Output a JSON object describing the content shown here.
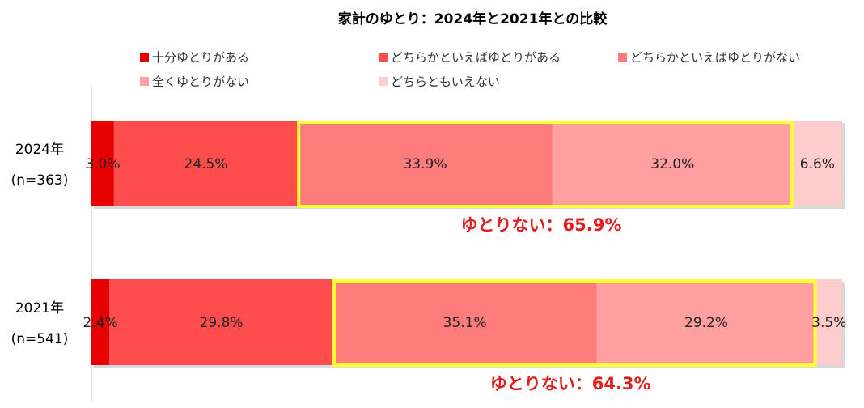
{
  "chart_data": {
    "type": "bar",
    "orientation": "horizontal-stacked-100",
    "title": "家計のゆとり：2024年と2021年との比較",
    "xlim": [
      0,
      100
    ],
    "unit": "%",
    "categories": [
      {
        "year": "2024年",
        "n": "(n=363)"
      },
      {
        "year": "2021年",
        "n": "(n=541)"
      }
    ],
    "series": [
      {
        "name": "十分ゆとりがある",
        "color": "#e60000",
        "values": [
          3.0,
          2.4
        ],
        "labels": [
          "3.0%",
          "2.4%"
        ]
      },
      {
        "name": "どちらかといえばゆとりがある",
        "color": "#ff4d4d",
        "values": [
          24.5,
          29.8
        ],
        "labels": [
          "24.5%",
          "29.8%"
        ]
      },
      {
        "name": "どちらかといえばゆとりがない",
        "color": "#ff7c7c",
        "values": [
          33.9,
          35.1
        ],
        "labels": [
          "33.9%",
          "35.1%"
        ]
      },
      {
        "name": "全くゆとりがない",
        "color": "#ff9f9f",
        "values": [
          32.0,
          29.2
        ],
        "labels": [
          "32.0%",
          "29.2%"
        ]
      },
      {
        "name": "どちらともいえない",
        "color": "#ffcccc",
        "values": [
          6.6,
          3.5
        ],
        "labels": [
          "6.6%",
          "3.5%"
        ]
      }
    ],
    "highlight": {
      "series_index": [
        2,
        3
      ],
      "border_color": "#ffff33",
      "annotations": [
        "ゆとりない：65.9%",
        "ゆとりない：64.3%"
      ],
      "annotation_color": "#e02020"
    }
  }
}
